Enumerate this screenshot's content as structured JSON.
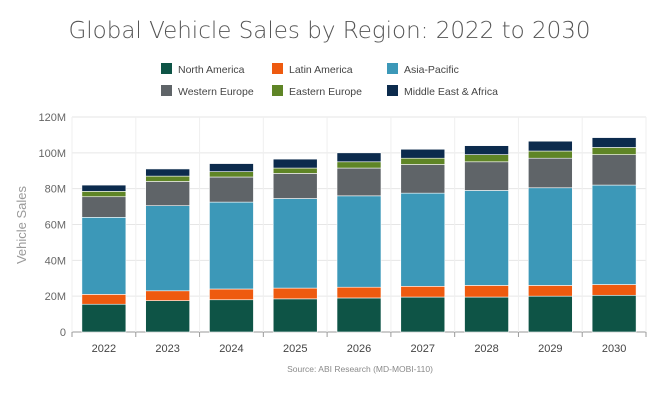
{
  "chart_data": {
    "type": "bar",
    "stacked": true,
    "title": "Global Vehicle Sales by Region: 2022 to 2030",
    "ylabel": "Vehicle Sales",
    "source": "Source: ABI Research (MD-MOBI-110)",
    "categories": [
      "2022",
      "2023",
      "2024",
      "2025",
      "2026",
      "2027",
      "2028",
      "2029",
      "2030"
    ],
    "ylim": [
      0,
      120
    ],
    "yticks": [
      {
        "value": 0,
        "label": "0"
      },
      {
        "value": 20,
        "label": "20M"
      },
      {
        "value": 40,
        "label": "40M"
      },
      {
        "value": 60,
        "label": "60M"
      },
      {
        "value": 80,
        "label": "80M"
      },
      {
        "value": 100,
        "label": "100M"
      },
      {
        "value": 120,
        "label": "120M"
      }
    ],
    "legend_position": "top",
    "series": [
      {
        "name": "North America",
        "color": "#0e5446",
        "values": [
          15.5,
          17.5,
          18,
          18.5,
          19,
          19.5,
          19.5,
          20,
          20.5
        ]
      },
      {
        "name": "Latin America",
        "color": "#ee5a0f",
        "values": [
          5.5,
          5.5,
          6,
          6,
          6,
          6,
          6.5,
          6,
          6
        ]
      },
      {
        "name": "Asia-Pacific",
        "color": "#3c98b8",
        "values": [
          43,
          47.5,
          48.5,
          50,
          51,
          52,
          53,
          54.5,
          55.5
        ]
      },
      {
        "name": "Western Europe",
        "color": "#5f6468",
        "values": [
          11.5,
          13.5,
          14,
          14,
          15.5,
          16,
          16,
          16.5,
          17
        ]
      },
      {
        "name": "Eastern Europe",
        "color": "#5f8526",
        "values": [
          3,
          3,
          3,
          3,
          3.5,
          3.5,
          4,
          4,
          4
        ]
      },
      {
        "name": "Middle East & Africa",
        "color": "#0c2b4d",
        "values": [
          3.5,
          4,
          4.5,
          5,
          5,
          5,
          5,
          5.5,
          5.5
        ]
      }
    ]
  }
}
